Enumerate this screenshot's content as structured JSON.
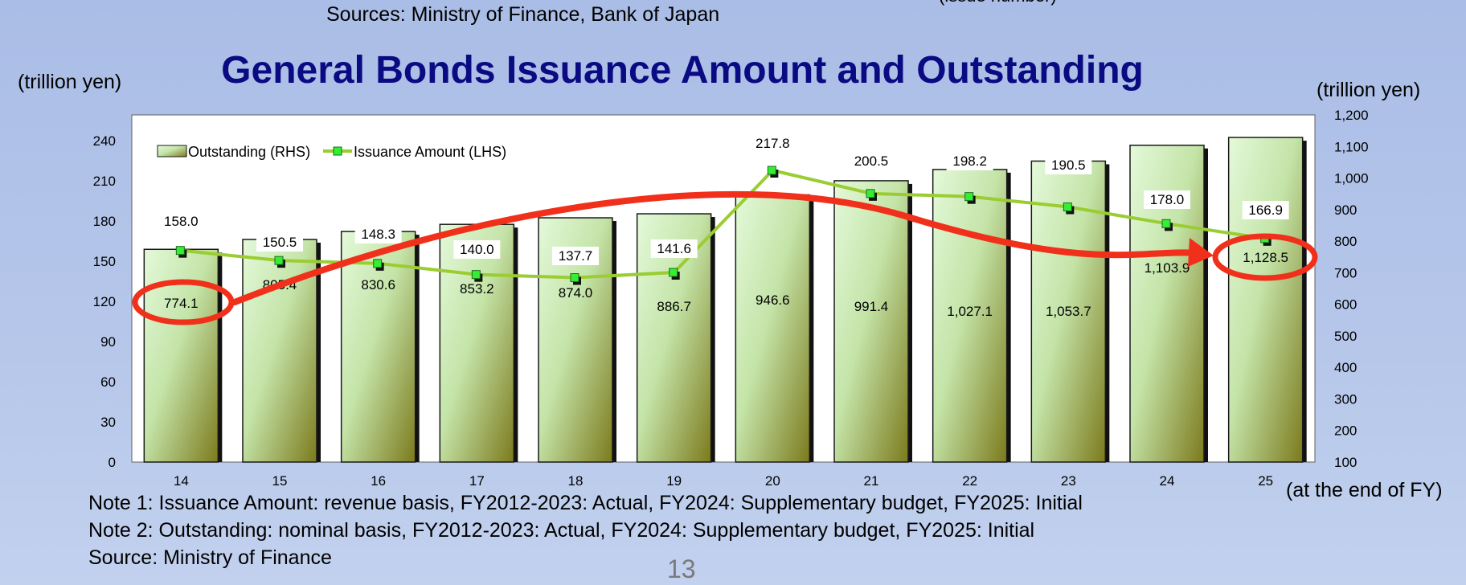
{
  "header": {
    "top_source": "Sources: Ministry of Finance, Bank of Japan",
    "top_cut_text": "(issue number)",
    "page_number": "13"
  },
  "notes": {
    "note1": "Note 1: Issuance Amount: revenue basis, FY2012-2023: Actual, FY2024: Supplementary budget, FY2025: Initial",
    "note2": "Note 2: Outstanding: nominal basis, FY2012-2023: Actual, FY2024: Supplementary budget, FY2025: Initial",
    "source": "Source: Ministry of Finance"
  },
  "colors": {
    "title": "#0a0a82",
    "bar_light": "#dff7d4",
    "bar_dark": "#7c7a1c",
    "line": "#9acd32",
    "marker": "#33ee33",
    "highlight": "#f0301a",
    "plot_bg": "#ffffff"
  },
  "chart_data": {
    "type": "bar",
    "title": "General Bonds Issuance Amount and Outstanding",
    "ylabel_left": "(trillion yen)",
    "ylabel_right": "(trillion yen)",
    "xlabel": "(at the end of FY)",
    "categories": [
      "14",
      "15",
      "16",
      "17",
      "18",
      "19",
      "20",
      "21",
      "22",
      "23",
      "24",
      "25"
    ],
    "ylim_left": [
      0,
      240
    ],
    "yticks_left": [
      0,
      30,
      60,
      90,
      120,
      150,
      180,
      210,
      240
    ],
    "ylim_right": [
      100,
      1200
    ],
    "yticks_right": [
      "100",
      "200",
      "300",
      "400",
      "500",
      "600",
      "700",
      "800",
      "900",
      "1,000",
      "1,100",
      "1,200"
    ],
    "grid": false,
    "legend_position": "top-left",
    "series": [
      {
        "name": "Outstanding (RHS)",
        "kind": "bar",
        "axis": "right",
        "values": [
          774.1,
          805.4,
          830.6,
          853.2,
          874.0,
          886.7,
          946.6,
          991.4,
          1027.1,
          1053.7,
          1103.9,
          1128.5
        ],
        "labels": [
          "774.1",
          "805.4",
          "830.6",
          "853.2",
          "874.0",
          "886.7",
          "946.6",
          "991.4",
          "1,027.1",
          "1,053.7",
          "1,103.9",
          "1,128.5"
        ]
      },
      {
        "name": "Issuance Amount (LHS)",
        "kind": "line",
        "axis": "left",
        "values": [
          158.0,
          150.5,
          148.3,
          140.0,
          137.7,
          141.6,
          217.8,
          200.5,
          198.2,
          190.5,
          178.0,
          166.9
        ],
        "labels": [
          "158.0",
          "150.5",
          "148.3",
          "140.0",
          "137.7",
          "141.6",
          "217.8",
          "200.5",
          "198.2",
          "190.5",
          "178.0",
          "166.9"
        ]
      }
    ],
    "annotations": [
      {
        "type": "circle",
        "target": "Outstanding (RHS)",
        "category": "14"
      },
      {
        "type": "circle",
        "target": "Outstanding (RHS)",
        "category": "25"
      },
      {
        "type": "curved-arrow",
        "from": "14",
        "to": "25"
      }
    ]
  }
}
